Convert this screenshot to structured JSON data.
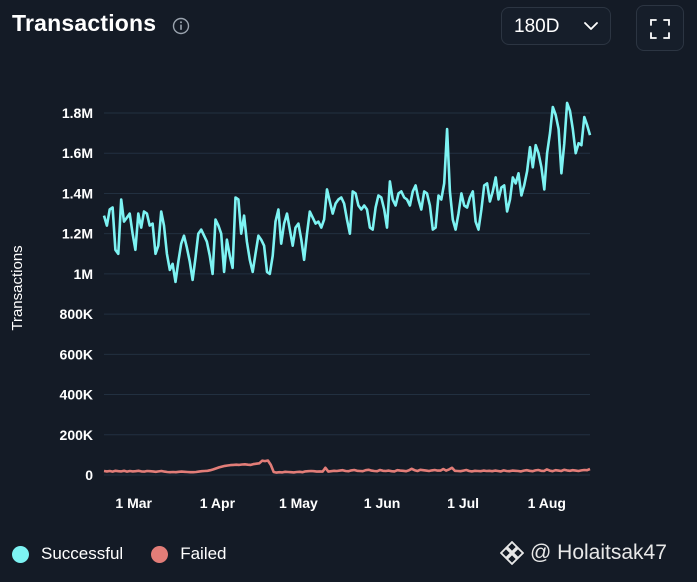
{
  "header": {
    "title": "Transactions",
    "range_selected": "180D"
  },
  "watermark": {
    "handle": "@ Holaitsak47"
  },
  "colors": {
    "background": "#141b26",
    "successful": "#7df3f3",
    "failed": "#e27d78",
    "grid": "#223040"
  },
  "chart_data": {
    "type": "line",
    "title": "Transactions",
    "ylabel": "Transactions",
    "xlabel": "",
    "ylim": [
      0,
      1800000
    ],
    "y_ticks": [
      0,
      200000,
      400000,
      600000,
      800000,
      1000000,
      1200000,
      1400000,
      1600000,
      1800000
    ],
    "y_tick_labels": [
      "0",
      "200K",
      "400K",
      "600K",
      "800K",
      "1M",
      "1.2M",
      "1.4M",
      "1.6M",
      "1.8M"
    ],
    "x_start": "2024-02-19",
    "x_end": "2024-08-17",
    "x_ticks": [
      "2024-03-01",
      "2024-04-01",
      "2024-05-01",
      "2024-06-01",
      "2024-07-01",
      "2024-08-01"
    ],
    "x_tick_labels": [
      "1 Mar",
      "1 Apr",
      "1 May",
      "1 Jun",
      "1 Jul",
      "1 Aug"
    ],
    "grid": true,
    "legend_position": "bottom-left",
    "series": [
      {
        "name": "Successful",
        "color": "#7df3f3",
        "values": [
          1290000,
          1240000,
          1320000,
          1330000,
          1120000,
          1100000,
          1370000,
          1260000,
          1280000,
          1300000,
          1200000,
          1120000,
          1300000,
          1230000,
          1310000,
          1300000,
          1240000,
          1250000,
          1100000,
          1140000,
          1310000,
          1240000,
          1100000,
          1020000,
          1050000,
          960000,
          1060000,
          1150000,
          1190000,
          1130000,
          1060000,
          970000,
          1080000,
          1200000,
          1220000,
          1190000,
          1160000,
          1090000,
          1000000,
          1270000,
          1240000,
          1200000,
          1010000,
          1170000,
          1090000,
          1030000,
          1380000,
          1370000,
          1200000,
          1290000,
          1160000,
          1070000,
          1010000,
          1100000,
          1190000,
          1170000,
          1140000,
          1010000,
          1000000,
          1090000,
          1260000,
          1320000,
          1150000,
          1250000,
          1300000,
          1220000,
          1140000,
          1230000,
          1250000,
          1170000,
          1070000,
          1200000,
          1310000,
          1280000,
          1250000,
          1260000,
          1230000,
          1270000,
          1420000,
          1360000,
          1300000,
          1350000,
          1370000,
          1380000,
          1350000,
          1270000,
          1200000,
          1410000,
          1400000,
          1340000,
          1320000,
          1340000,
          1320000,
          1230000,
          1220000,
          1330000,
          1390000,
          1380000,
          1320000,
          1230000,
          1460000,
          1370000,
          1340000,
          1400000,
          1410000,
          1380000,
          1370000,
          1340000,
          1410000,
          1440000,
          1370000,
          1320000,
          1410000,
          1400000,
          1340000,
          1220000,
          1230000,
          1390000,
          1370000,
          1450000,
          1720000,
          1410000,
          1270000,
          1220000,
          1300000,
          1400000,
          1340000,
          1330000,
          1380000,
          1410000,
          1260000,
          1220000,
          1320000,
          1440000,
          1450000,
          1360000,
          1410000,
          1480000,
          1370000,
          1430000,
          1440000,
          1310000,
          1370000,
          1480000,
          1450000,
          1500000,
          1390000,
          1440000,
          1510000,
          1630000,
          1530000,
          1640000,
          1600000,
          1530000,
          1420000,
          1600000,
          1700000,
          1830000,
          1790000,
          1720000,
          1500000,
          1650000,
          1850000,
          1810000,
          1720000,
          1600000,
          1650000,
          1640000,
          1780000,
          1740000,
          1690000
        ]
      },
      {
        "name": "Failed",
        "color": "#e27d78",
        "values": [
          20000,
          18000,
          20000,
          17000,
          21000,
          19000,
          18000,
          21000,
          17000,
          20000,
          18000,
          19000,
          21000,
          18000,
          17000,
          20000,
          19000,
          18000,
          16000,
          18000,
          20000,
          17000,
          15000,
          14000,
          15000,
          14000,
          16000,
          17000,
          16000,
          15000,
          14000,
          14000,
          15000,
          17000,
          19000,
          20000,
          21000,
          24000,
          28000,
          33000,
          38000,
          42000,
          45000,
          47000,
          49000,
          50000,
          51000,
          50000,
          52000,
          53000,
          51000,
          50000,
          54000,
          56000,
          58000,
          71000,
          69000,
          72000,
          50000,
          15000,
          12000,
          14000,
          13000,
          16000,
          15000,
          14000,
          13000,
          15000,
          16000,
          14000,
          18000,
          19000,
          20000,
          19000,
          17000,
          18000,
          17000,
          36000,
          17000,
          19000,
          21000,
          20000,
          22000,
          24000,
          20000,
          19000,
          23000,
          25000,
          21000,
          20000,
          19000,
          24000,
          26000,
          22000,
          20000,
          19000,
          25000,
          21000,
          20000,
          22000,
          19000,
          18000,
          24000,
          22000,
          21000,
          19000,
          23000,
          31000,
          24000,
          20000,
          26000,
          24000,
          22000,
          20000,
          23000,
          25000,
          22000,
          22000,
          30000,
          22000,
          28000,
          36000,
          21000,
          20000,
          19000,
          22000,
          25000,
          20000,
          18000,
          21000,
          20000,
          19000,
          22000,
          20000,
          21000,
          19000,
          22000,
          20000,
          18000,
          23000,
          20000,
          19000,
          22000,
          21000,
          20000,
          18000,
          22000,
          24000,
          21000,
          19000,
          23000,
          25000,
          21000,
          20000,
          28000,
          22000,
          19000,
          24000,
          22000,
          20000,
          26000,
          23000,
          21000,
          24000,
          22000,
          20000,
          23000,
          25000,
          24000,
          30000
        ]
      }
    ]
  }
}
